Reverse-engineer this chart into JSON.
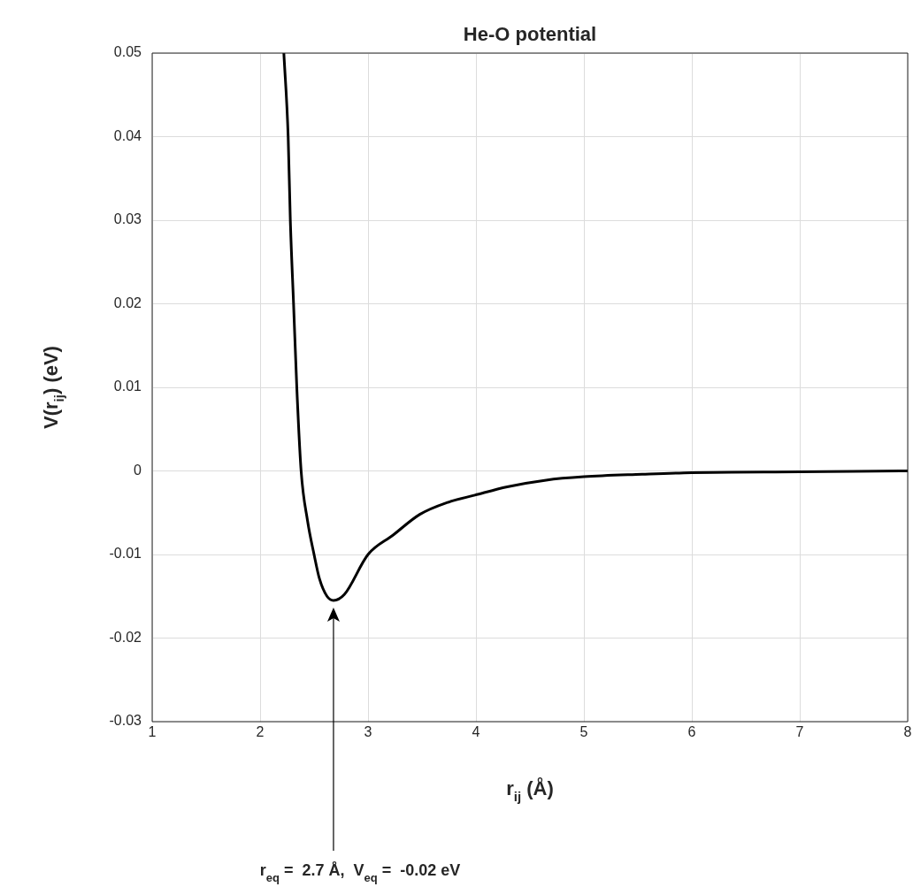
{
  "chart_data": {
    "type": "line",
    "title": "He-O potential",
    "xlabel": "r$_{ij}$ (Å)",
    "ylabel": "V(r$_{ij}$) (eV)",
    "xlim": [
      1,
      8
    ],
    "xticks": [
      1,
      2,
      3,
      4,
      5,
      6,
      7,
      8
    ],
    "ylim": [
      -0.03,
      0.05
    ],
    "yticks": [
      -0.03,
      -0.02,
      -0.01,
      0,
      0.01,
      0.02,
      0.03,
      0.04,
      0.05
    ],
    "grid": true,
    "legend": false,
    "marker": "none",
    "line_style": "solid",
    "series": [
      {
        "color": "#000000",
        "x": [
          2.22,
          2.26,
          2.28,
          2.31,
          2.34,
          2.38,
          2.44,
          2.5,
          2.55,
          2.62,
          2.68,
          2.78,
          3.0,
          3.23,
          3.48,
          3.73,
          3.99,
          4.29,
          4.65,
          5.0,
          5.54,
          6.0,
          7.0,
          8.0
        ],
        "values": [
          0.05,
          0.04,
          0.03,
          0.02,
          0.01,
          0.0,
          -0.006,
          -0.01,
          -0.0129,
          -0.015,
          -0.0155,
          -0.0148,
          -0.01,
          -0.0077,
          -0.0052,
          -0.0038,
          -0.0029,
          -0.0019,
          -0.0011,
          -0.0007,
          -0.0004,
          -0.0002,
          -0.0001,
          0.0
        ]
      }
    ],
    "annotations": [
      "r$_{eq}$ =  2.7 Å,  V$_{eq}$ =  -0.02 eV"
    ]
  }
}
